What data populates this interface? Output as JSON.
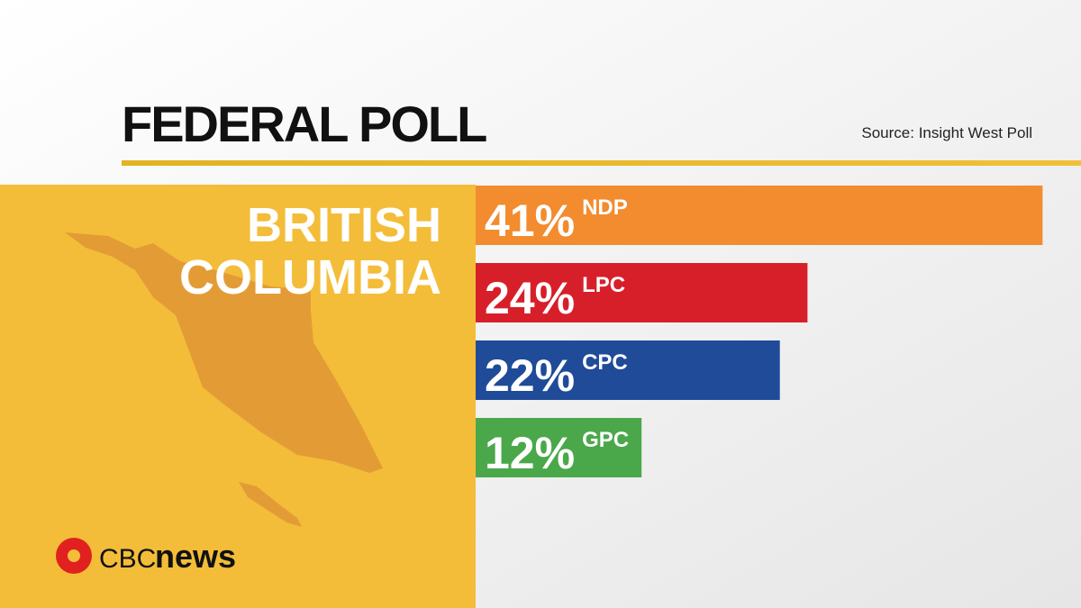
{
  "chart_data": {
    "type": "bar",
    "orientation": "horizontal",
    "title": "FEDERAL POLL",
    "source": "Source: Insight West Poll",
    "region": [
      "BRITISH",
      "COLUMBIA"
    ],
    "categories": [
      "NDP",
      "LPC",
      "CPC",
      "GPC"
    ],
    "values": [
      41,
      24,
      22,
      12
    ],
    "value_labels": [
      "41%",
      "24%",
      "22%",
      "12%"
    ],
    "colors": [
      "#f28c2e",
      "#d71f2a",
      "#1f4b99",
      "#4aa84a"
    ],
    "logo": {
      "brand": "CBC",
      "product": "news"
    }
  }
}
